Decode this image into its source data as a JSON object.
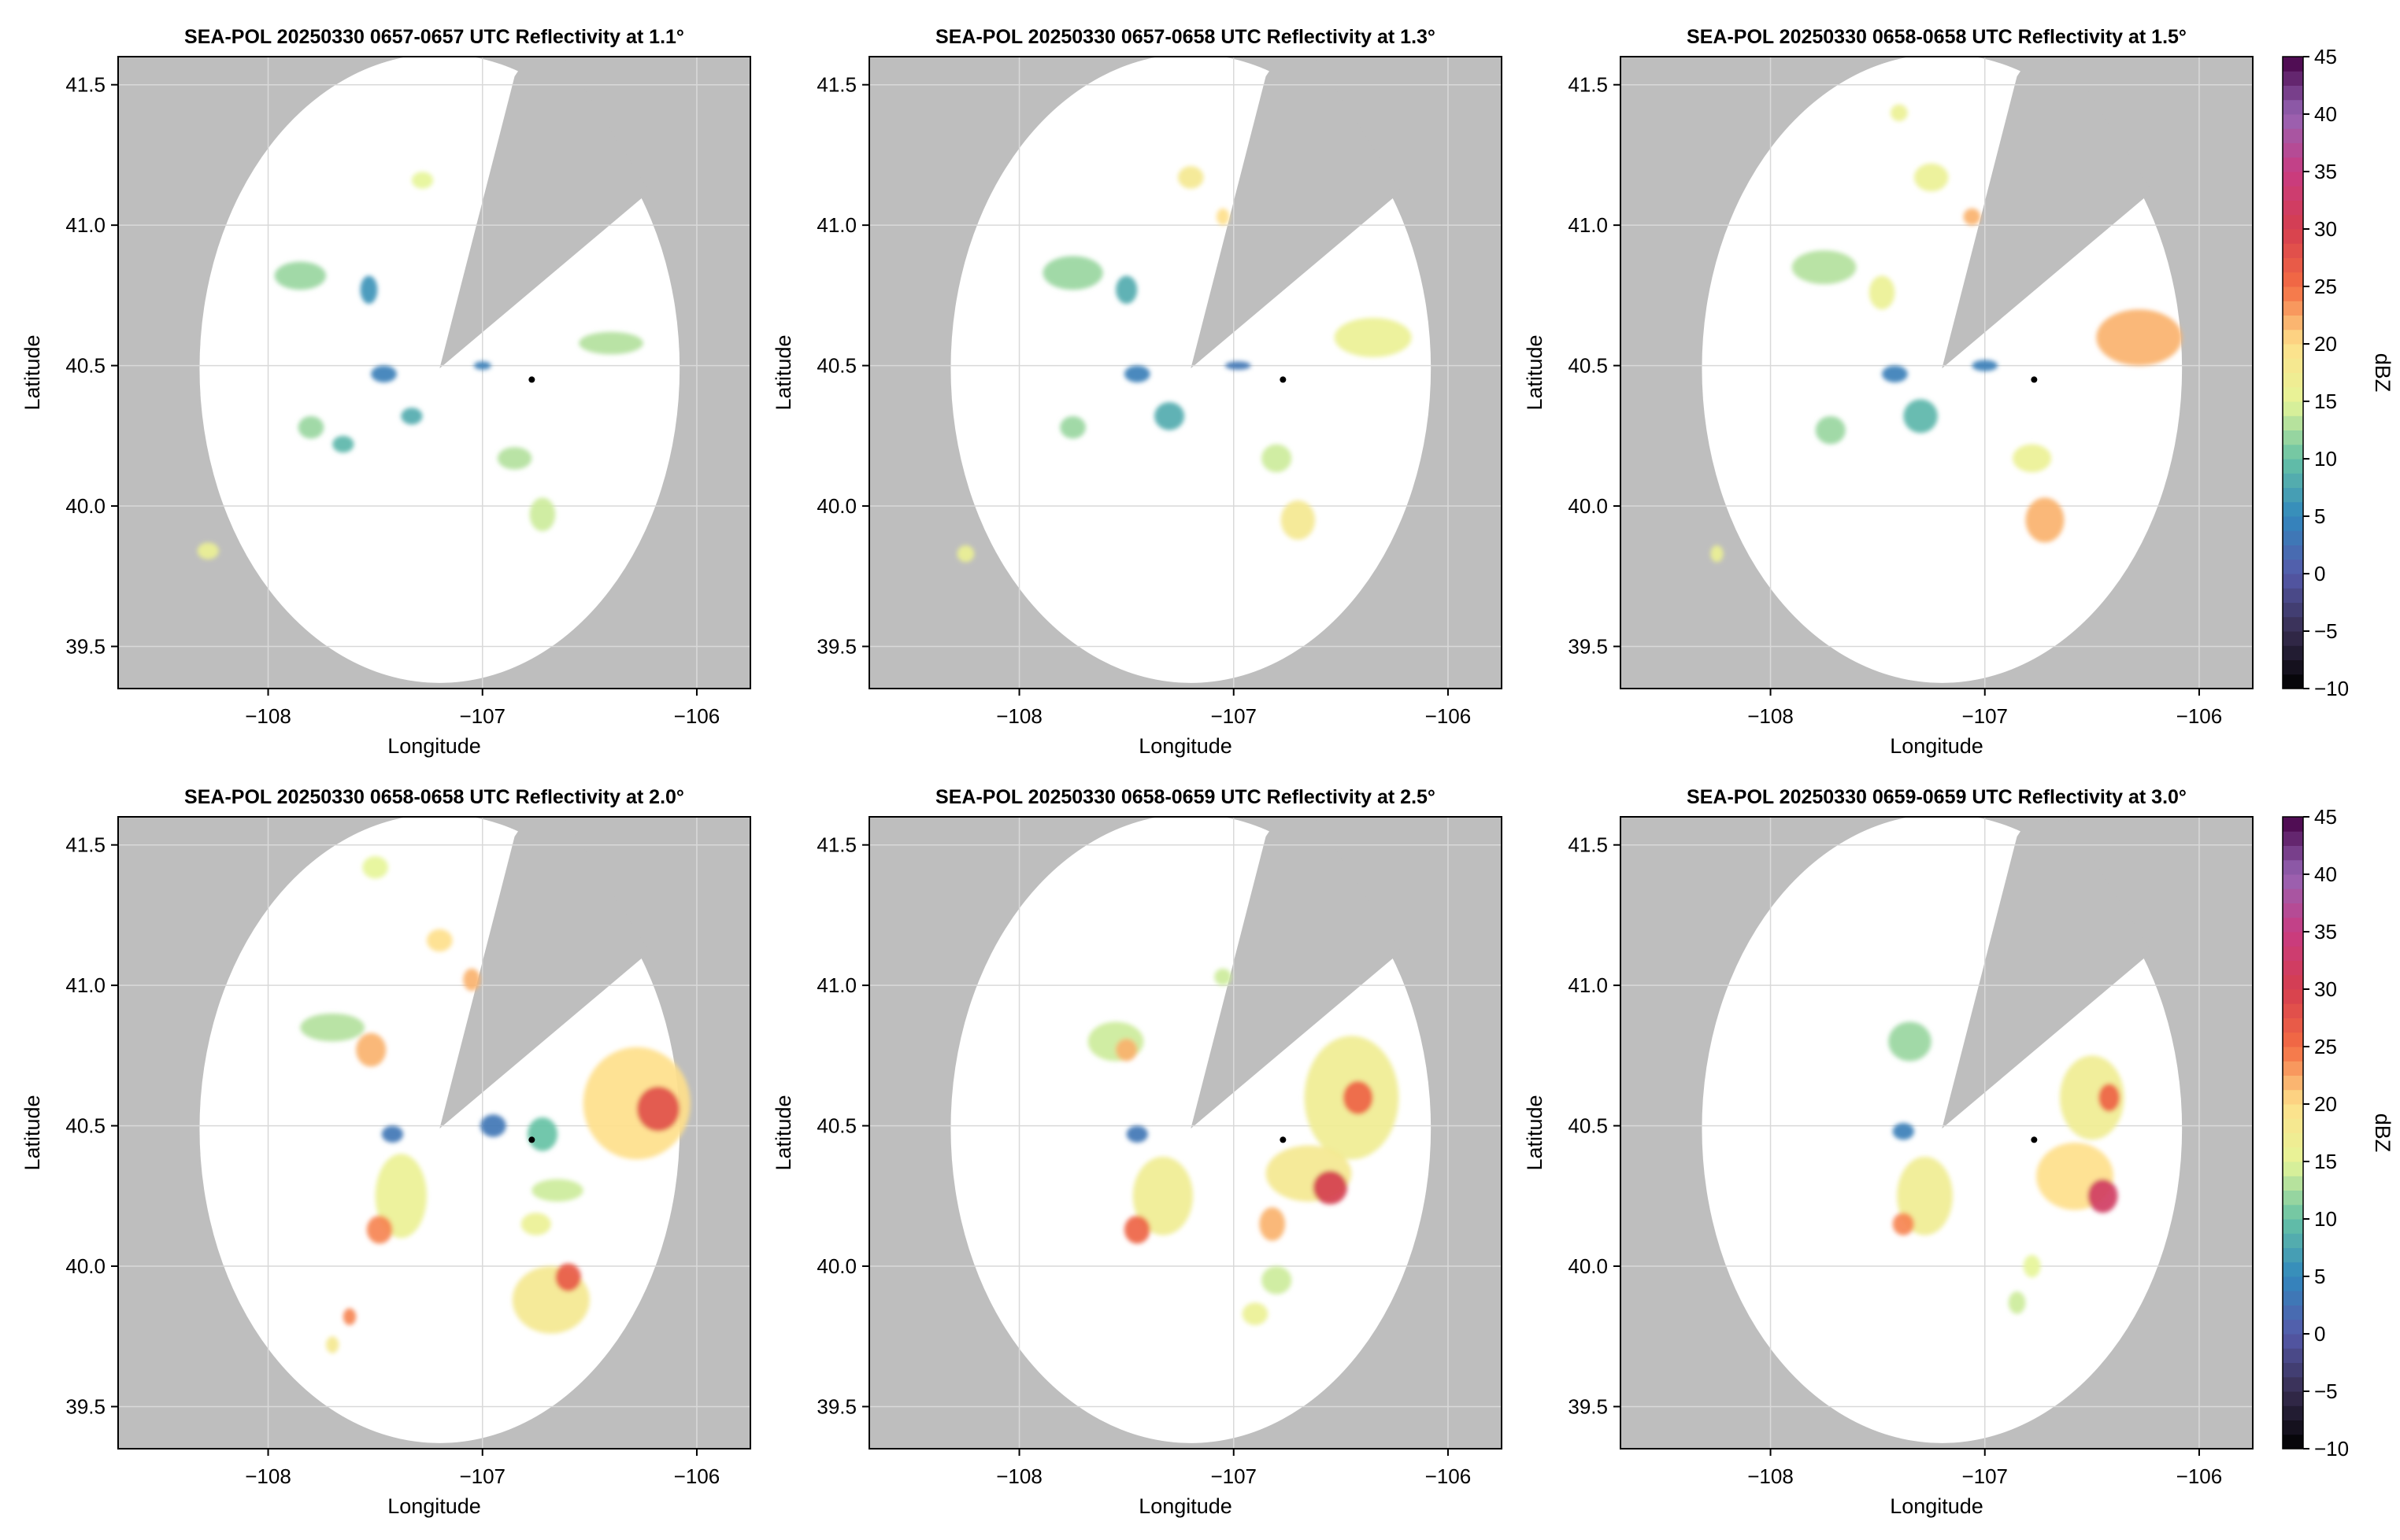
{
  "figure": {
    "colors": {
      "background": "#ffffff",
      "no_data": "#bebebe",
      "grid": "#d9d9d9",
      "axis": "#000000",
      "radar_site": "#000000"
    },
    "colorbar": {
      "label": "dBZ",
      "range": [
        -10,
        45
      ],
      "ticks": [
        "−10",
        "−5",
        "0",
        "5",
        "10",
        "15",
        "20",
        "25",
        "30",
        "35",
        "40",
        "45"
      ],
      "colormap": "Spectral_r"
    }
  },
  "chart_data": [
    {
      "type": "heatmap",
      "title": "SEA-POL 20250330 0657-0657 UTC Reflectivity at 1.1°",
      "xlabel": "Longitude",
      "ylabel": "Latitude",
      "xlim": [
        -108.7,
        -105.75
      ],
      "ylim": [
        39.35,
        41.6
      ],
      "x_ticks": [
        "−108",
        "−107",
        "−106"
      ],
      "y_ticks": [
        "39.5",
        "40.0",
        "40.5",
        "41.0",
        "41.5"
      ],
      "grid": true,
      "radar_center": [
        -107.2,
        40.49
      ],
      "range_radius_deg": 1.12,
      "blocked_sector": [
        [
          -106.85,
          41.53
        ],
        [
          -106.22,
          41.12
        ]
      ],
      "radar_site_marker": [
        -106.77,
        40.45
      ],
      "echoes": [
        {
          "lon": -107.85,
          "lat": 40.82,
          "rx": 0.12,
          "ry": 0.05,
          "dbz": 12
        },
        {
          "lon": -107.53,
          "lat": 40.77,
          "rx": 0.04,
          "ry": 0.05,
          "dbz": 6
        },
        {
          "lon": -107.28,
          "lat": 41.16,
          "rx": 0.05,
          "ry": 0.03,
          "dbz": 15
        },
        {
          "lon": -107.46,
          "lat": 40.47,
          "rx": 0.06,
          "ry": 0.03,
          "dbz": 4
        },
        {
          "lon": -107.0,
          "lat": 40.5,
          "rx": 0.04,
          "ry": 0.015,
          "dbz": 4
        },
        {
          "lon": -106.4,
          "lat": 40.58,
          "rx": 0.15,
          "ry": 0.04,
          "dbz": 13
        },
        {
          "lon": -107.8,
          "lat": 40.28,
          "rx": 0.06,
          "ry": 0.04,
          "dbz": 12
        },
        {
          "lon": -107.65,
          "lat": 40.22,
          "rx": 0.05,
          "ry": 0.03,
          "dbz": 9
        },
        {
          "lon": -107.33,
          "lat": 40.32,
          "rx": 0.05,
          "ry": 0.03,
          "dbz": 8
        },
        {
          "lon": -106.85,
          "lat": 40.17,
          "rx": 0.08,
          "ry": 0.04,
          "dbz": 13
        },
        {
          "lon": -106.72,
          "lat": 39.97,
          "rx": 0.06,
          "ry": 0.06,
          "dbz": 14
        },
        {
          "lon": -108.28,
          "lat": 39.84,
          "rx": 0.05,
          "ry": 0.03,
          "dbz": 16
        }
      ]
    },
    {
      "type": "heatmap",
      "title": "SEA-POL 20250330 0657-0658 UTC Reflectivity at 1.3°",
      "xlabel": "Longitude",
      "ylabel": "Latitude",
      "xlim": [
        -108.7,
        -105.75
      ],
      "ylim": [
        39.35,
        41.6
      ],
      "x_ticks": [
        "−108",
        "−107",
        "−106"
      ],
      "y_ticks": [
        "39.5",
        "40.0",
        "40.5",
        "41.0",
        "41.5"
      ],
      "grid": true,
      "radar_center": [
        -107.2,
        40.49
      ],
      "range_radius_deg": 1.12,
      "blocked_sector": [
        [
          -106.85,
          41.53
        ],
        [
          -106.22,
          41.12
        ]
      ],
      "radar_site_marker": [
        -106.77,
        40.45
      ],
      "echoes": [
        {
          "lon": -107.75,
          "lat": 40.83,
          "rx": 0.14,
          "ry": 0.06,
          "dbz": 12
        },
        {
          "lon": -107.5,
          "lat": 40.77,
          "rx": 0.05,
          "ry": 0.05,
          "dbz": 8
        },
        {
          "lon": -107.2,
          "lat": 41.17,
          "rx": 0.06,
          "ry": 0.04,
          "dbz": 18
        },
        {
          "lon": -107.05,
          "lat": 41.03,
          "rx": 0.03,
          "ry": 0.03,
          "dbz": 20
        },
        {
          "lon": -107.45,
          "lat": 40.47,
          "rx": 0.06,
          "ry": 0.03,
          "dbz": 4
        },
        {
          "lon": -106.98,
          "lat": 40.5,
          "rx": 0.06,
          "ry": 0.015,
          "dbz": 3
        },
        {
          "lon": -106.35,
          "lat": 40.6,
          "rx": 0.18,
          "ry": 0.07,
          "dbz": 16
        },
        {
          "lon": -107.3,
          "lat": 40.32,
          "rx": 0.07,
          "ry": 0.05,
          "dbz": 8
        },
        {
          "lon": -107.75,
          "lat": 40.28,
          "rx": 0.06,
          "ry": 0.04,
          "dbz": 12
        },
        {
          "lon": -106.8,
          "lat": 40.17,
          "rx": 0.07,
          "ry": 0.05,
          "dbz": 14
        },
        {
          "lon": -106.7,
          "lat": 39.95,
          "rx": 0.08,
          "ry": 0.07,
          "dbz": 18
        },
        {
          "lon": -108.25,
          "lat": 39.83,
          "rx": 0.04,
          "ry": 0.03,
          "dbz": 16
        }
      ]
    },
    {
      "type": "heatmap",
      "title": "SEA-POL 20250330 0658-0658 UTC Reflectivity at 1.5°",
      "xlabel": "Longitude",
      "ylabel": "Latitude",
      "xlim": [
        -108.7,
        -105.75
      ],
      "ylim": [
        39.35,
        41.6
      ],
      "x_ticks": [
        "−108",
        "−107",
        "−106"
      ],
      "y_ticks": [
        "39.5",
        "40.0",
        "40.5",
        "41.0",
        "41.5"
      ],
      "grid": true,
      "radar_center": [
        -107.2,
        40.49
      ],
      "range_radius_deg": 1.12,
      "blocked_sector": [
        [
          -106.85,
          41.53
        ],
        [
          -106.22,
          41.12
        ]
      ],
      "radar_site_marker": [
        -106.77,
        40.45
      ],
      "echoes": [
        {
          "lon": -107.75,
          "lat": 40.85,
          "rx": 0.15,
          "ry": 0.06,
          "dbz": 13
        },
        {
          "lon": -107.48,
          "lat": 40.76,
          "rx": 0.06,
          "ry": 0.06,
          "dbz": 16
        },
        {
          "lon": -107.25,
          "lat": 41.17,
          "rx": 0.08,
          "ry": 0.05,
          "dbz": 16
        },
        {
          "lon": -107.06,
          "lat": 41.03,
          "rx": 0.04,
          "ry": 0.03,
          "dbz": 22
        },
        {
          "lon": -107.4,
          "lat": 41.4,
          "rx": 0.04,
          "ry": 0.03,
          "dbz": 16
        },
        {
          "lon": -107.42,
          "lat": 40.47,
          "rx": 0.06,
          "ry": 0.03,
          "dbz": 4
        },
        {
          "lon": -107.0,
          "lat": 40.5,
          "rx": 0.06,
          "ry": 0.02,
          "dbz": 4
        },
        {
          "lon": -106.28,
          "lat": 40.6,
          "rx": 0.2,
          "ry": 0.1,
          "dbz": 22
        },
        {
          "lon": -107.3,
          "lat": 40.32,
          "rx": 0.08,
          "ry": 0.06,
          "dbz": 9
        },
        {
          "lon": -107.72,
          "lat": 40.27,
          "rx": 0.07,
          "ry": 0.05,
          "dbz": 12
        },
        {
          "lon": -106.78,
          "lat": 40.17,
          "rx": 0.09,
          "ry": 0.05,
          "dbz": 16
        },
        {
          "lon": -106.72,
          "lat": 39.95,
          "rx": 0.09,
          "ry": 0.08,
          "dbz": 22
        },
        {
          "lon": -108.25,
          "lat": 39.83,
          "rx": 0.03,
          "ry": 0.03,
          "dbz": 16
        }
      ]
    },
    {
      "type": "heatmap",
      "title": "SEA-POL 20250330 0658-0658 UTC Reflectivity at 2.0°",
      "xlabel": "Longitude",
      "ylabel": "Latitude",
      "xlim": [
        -108.7,
        -105.75
      ],
      "ylim": [
        39.35,
        41.6
      ],
      "x_ticks": [
        "−108",
        "−107",
        "−106"
      ],
      "y_ticks": [
        "39.5",
        "40.0",
        "40.5",
        "41.0",
        "41.5"
      ],
      "grid": true,
      "radar_center": [
        -107.2,
        40.49
      ],
      "range_radius_deg": 1.12,
      "blocked_sector": [
        [
          -106.85,
          41.53
        ],
        [
          -106.22,
          41.12
        ]
      ],
      "radar_site_marker": [
        -106.77,
        40.45
      ],
      "echoes": [
        {
          "lon": -107.7,
          "lat": 40.85,
          "rx": 0.15,
          "ry": 0.05,
          "dbz": 13
        },
        {
          "lon": -107.52,
          "lat": 40.77,
          "rx": 0.07,
          "ry": 0.06,
          "dbz": 22
        },
        {
          "lon": -107.2,
          "lat": 41.16,
          "rx": 0.06,
          "ry": 0.04,
          "dbz": 20
        },
        {
          "lon": -107.05,
          "lat": 41.02,
          "rx": 0.04,
          "ry": 0.04,
          "dbz": 22
        },
        {
          "lon": -107.5,
          "lat": 41.42,
          "rx": 0.06,
          "ry": 0.04,
          "dbz": 15
        },
        {
          "lon": -107.42,
          "lat": 40.47,
          "rx": 0.05,
          "ry": 0.03,
          "dbz": 3
        },
        {
          "lon": -106.95,
          "lat": 40.5,
          "rx": 0.06,
          "ry": 0.04,
          "dbz": 3
        },
        {
          "lon": -106.72,
          "lat": 40.47,
          "rx": 0.07,
          "ry": 0.06,
          "dbz": 10
        },
        {
          "lon": -106.28,
          "lat": 40.58,
          "rx": 0.25,
          "ry": 0.2,
          "dbz": 20
        },
        {
          "lon": -106.18,
          "lat": 40.56,
          "rx": 0.1,
          "ry": 0.08,
          "dbz": 28
        },
        {
          "lon": -107.38,
          "lat": 40.25,
          "rx": 0.12,
          "ry": 0.15,
          "dbz": 16
        },
        {
          "lon": -107.48,
          "lat": 40.13,
          "rx": 0.06,
          "ry": 0.05,
          "dbz": 24
        },
        {
          "lon": -106.65,
          "lat": 40.27,
          "rx": 0.12,
          "ry": 0.04,
          "dbz": 14
        },
        {
          "lon": -106.75,
          "lat": 40.15,
          "rx": 0.07,
          "ry": 0.04,
          "dbz": 16
        },
        {
          "lon": -106.68,
          "lat": 39.88,
          "rx": 0.18,
          "ry": 0.12,
          "dbz": 18
        },
        {
          "lon": -106.6,
          "lat": 39.96,
          "rx": 0.06,
          "ry": 0.05,
          "dbz": 27
        },
        {
          "lon": -107.7,
          "lat": 39.72,
          "rx": 0.03,
          "ry": 0.03,
          "dbz": 18
        },
        {
          "lon": -107.62,
          "lat": 39.82,
          "rx": 0.03,
          "ry": 0.03,
          "dbz": 24
        }
      ]
    },
    {
      "type": "heatmap",
      "title": "SEA-POL 20250330 0658-0659 UTC Reflectivity at 2.5°",
      "xlabel": "Longitude",
      "ylabel": "Latitude",
      "xlim": [
        -108.7,
        -105.75
      ],
      "ylim": [
        39.35,
        41.6
      ],
      "x_ticks": [
        "−108",
        "−107",
        "−106"
      ],
      "y_ticks": [
        "39.5",
        "40.0",
        "40.5",
        "41.0",
        "41.5"
      ],
      "grid": true,
      "radar_center": [
        -107.2,
        40.49
      ],
      "range_radius_deg": 1.12,
      "blocked_sector": [
        [
          -106.85,
          41.53
        ],
        [
          -106.22,
          41.12
        ]
      ],
      "radar_site_marker": [
        -106.77,
        40.45
      ],
      "echoes": [
        {
          "lon": -107.55,
          "lat": 40.8,
          "rx": 0.13,
          "ry": 0.07,
          "dbz": 14
        },
        {
          "lon": -107.5,
          "lat": 40.77,
          "rx": 0.05,
          "ry": 0.04,
          "dbz": 22
        },
        {
          "lon": -107.05,
          "lat": 41.03,
          "rx": 0.04,
          "ry": 0.03,
          "dbz": 14
        },
        {
          "lon": -107.45,
          "lat": 40.47,
          "rx": 0.05,
          "ry": 0.03,
          "dbz": 3
        },
        {
          "lon": -106.45,
          "lat": 40.6,
          "rx": 0.22,
          "ry": 0.22,
          "dbz": 17
        },
        {
          "lon": -106.42,
          "lat": 40.6,
          "rx": 0.07,
          "ry": 0.06,
          "dbz": 26
        },
        {
          "lon": -106.65,
          "lat": 40.33,
          "rx": 0.2,
          "ry": 0.1,
          "dbz": 18
        },
        {
          "lon": -106.55,
          "lat": 40.28,
          "rx": 0.08,
          "ry": 0.06,
          "dbz": 30
        },
        {
          "lon": -107.33,
          "lat": 40.25,
          "rx": 0.14,
          "ry": 0.14,
          "dbz": 17
        },
        {
          "lon": -107.45,
          "lat": 40.13,
          "rx": 0.06,
          "ry": 0.05,
          "dbz": 26
        },
        {
          "lon": -106.82,
          "lat": 40.15,
          "rx": 0.06,
          "ry": 0.06,
          "dbz": 22
        },
        {
          "lon": -106.8,
          "lat": 39.95,
          "rx": 0.07,
          "ry": 0.05,
          "dbz": 14
        },
        {
          "lon": -106.9,
          "lat": 39.83,
          "rx": 0.06,
          "ry": 0.04,
          "dbz": 16
        }
      ]
    },
    {
      "type": "heatmap",
      "title": "SEA-POL 20250330 0659-0659 UTC Reflectivity at 3.0°",
      "xlabel": "Longitude",
      "ylabel": "Latitude",
      "xlim": [
        -108.7,
        -105.75
      ],
      "ylim": [
        39.35,
        41.6
      ],
      "x_ticks": [
        "−108",
        "−107",
        "−106"
      ],
      "y_ticks": [
        "39.5",
        "40.0",
        "40.5",
        "41.0",
        "41.5"
      ],
      "grid": true,
      "radar_center": [
        -107.2,
        40.49
      ],
      "range_radius_deg": 1.12,
      "blocked_sector": [
        [
          -106.85,
          41.53
        ],
        [
          -106.22,
          41.12
        ]
      ],
      "radar_site_marker": [
        -106.77,
        40.45
      ],
      "echoes": [
        {
          "lon": -107.35,
          "lat": 40.8,
          "rx": 0.1,
          "ry": 0.07,
          "dbz": 12
        },
        {
          "lon": -107.38,
          "lat": 40.48,
          "rx": 0.05,
          "ry": 0.03,
          "dbz": 4
        },
        {
          "lon": -106.5,
          "lat": 40.6,
          "rx": 0.15,
          "ry": 0.15,
          "dbz": 17
        },
        {
          "lon": -106.42,
          "lat": 40.6,
          "rx": 0.05,
          "ry": 0.05,
          "dbz": 26
        },
        {
          "lon": -106.58,
          "lat": 40.32,
          "rx": 0.18,
          "ry": 0.12,
          "dbz": 20
        },
        {
          "lon": -106.45,
          "lat": 40.25,
          "rx": 0.07,
          "ry": 0.06,
          "dbz": 32
        },
        {
          "lon": -107.28,
          "lat": 40.25,
          "rx": 0.13,
          "ry": 0.14,
          "dbz": 17
        },
        {
          "lon": -107.38,
          "lat": 40.15,
          "rx": 0.05,
          "ry": 0.04,
          "dbz": 24
        },
        {
          "lon": -106.78,
          "lat": 40.0,
          "rx": 0.04,
          "ry": 0.04,
          "dbz": 15
        },
        {
          "lon": -106.85,
          "lat": 39.87,
          "rx": 0.04,
          "ry": 0.04,
          "dbz": 14
        }
      ]
    }
  ]
}
